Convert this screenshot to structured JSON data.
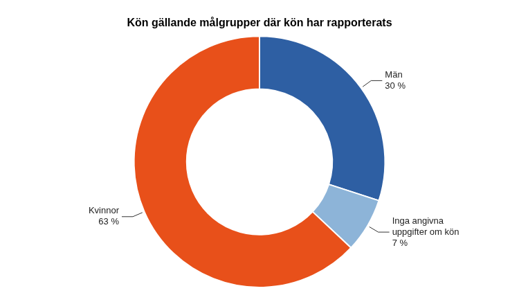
{
  "chart_data": {
    "type": "doughnut",
    "title": "Kön gällande målgrupper där kön har rapporterats",
    "categories": [
      "Män",
      "Inga angivna\nuppgifter om kön",
      "Kvinnor"
    ],
    "values": [
      30,
      7,
      63
    ],
    "value_labels": [
      "30 %",
      "7 %",
      "63 %"
    ],
    "colors": [
      "#2E5FA3",
      "#8DB4D8",
      "#E8501A"
    ],
    "data_labels": true
  }
}
